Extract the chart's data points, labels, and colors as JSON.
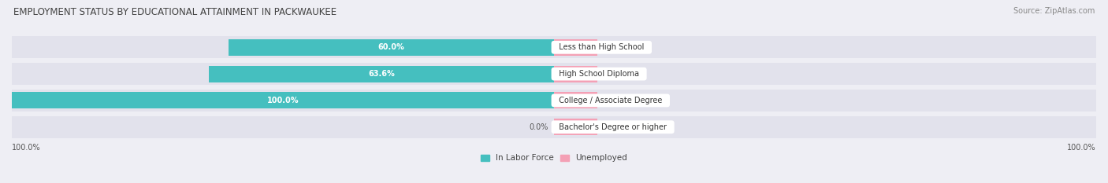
{
  "title": "EMPLOYMENT STATUS BY EDUCATIONAL ATTAINMENT IN PACKWAUKEE",
  "source": "Source: ZipAtlas.com",
  "categories": [
    "Less than High School",
    "High School Diploma",
    "College / Associate Degree",
    "Bachelor's Degree or higher"
  ],
  "in_labor_force": [
    60.0,
    63.6,
    100.0,
    0.0
  ],
  "unemployed": [
    0.0,
    0.0,
    0.0,
    0.0
  ],
  "labor_force_color": "#45BFBF",
  "unemployed_color": "#F4A0B5",
  "background_color": "#eeeef4",
  "bar_bg_color": "#e2e2ec",
  "title_fontsize": 8.5,
  "source_fontsize": 7,
  "label_fontsize": 7,
  "category_fontsize": 7,
  "legend_fontsize": 7.5,
  "bar_height": 0.62,
  "xlim_left": -100,
  "xlim_right": 100,
  "pink_bar_width": 8
}
